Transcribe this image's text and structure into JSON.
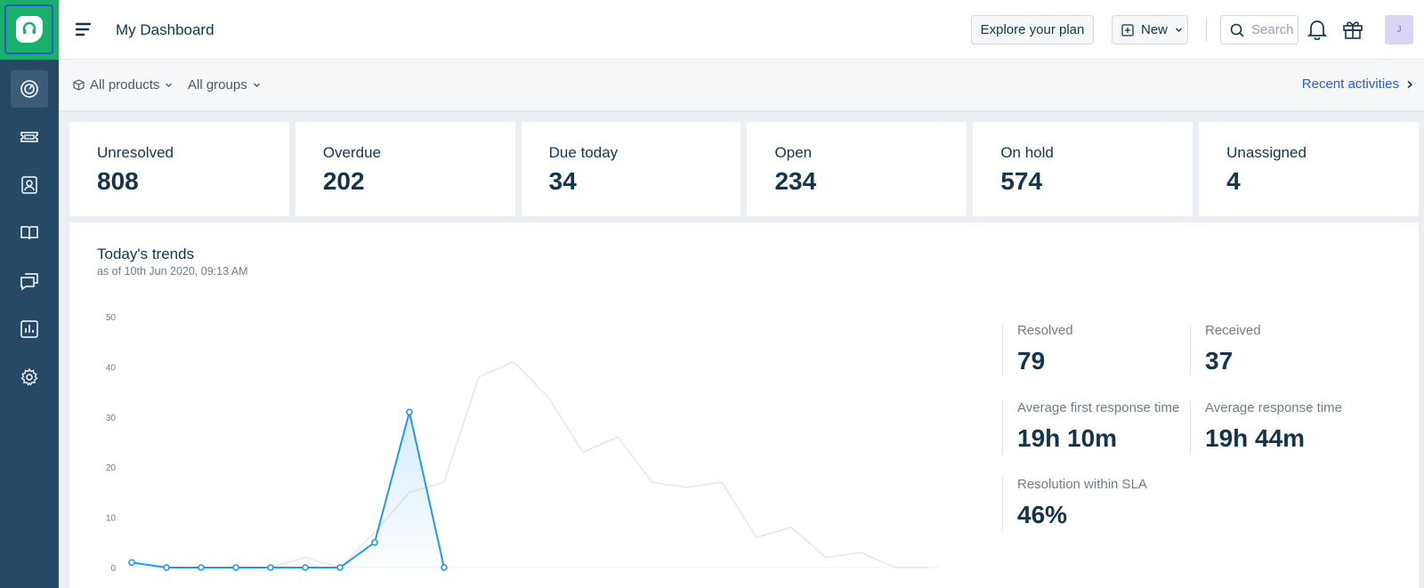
{
  "header": {
    "title": "My Dashboard",
    "explore_label": "Explore your plan",
    "new_label": "New",
    "search_placeholder": "Search",
    "avatar_initial": "J"
  },
  "filters": {
    "products": "All products",
    "groups": "All groups",
    "recent_activities": "Recent activities"
  },
  "sidebar": {
    "items": [
      {
        "icon": "dashboard-icon",
        "active": true
      },
      {
        "icon": "tickets-icon",
        "active": false
      },
      {
        "icon": "contacts-icon",
        "active": false
      },
      {
        "icon": "solutions-icon",
        "active": false
      },
      {
        "icon": "forums-icon",
        "active": false
      },
      {
        "icon": "analytics-icon",
        "active": false
      },
      {
        "icon": "admin-gear-icon",
        "active": false
      }
    ]
  },
  "cards": [
    {
      "label": "Unresolved",
      "value": "808"
    },
    {
      "label": "Overdue",
      "value": "202"
    },
    {
      "label": "Due today",
      "value": "34"
    },
    {
      "label": "Open",
      "value": "234"
    },
    {
      "label": "On hold",
      "value": "574"
    },
    {
      "label": "Unassigned",
      "value": "4"
    }
  ],
  "trends": {
    "title": "Today's trends",
    "subtitle": "as of 10th Jun 2020, 09:13 AM",
    "metrics": {
      "resolved_label": "Resolved",
      "resolved_value": "79",
      "received_label": "Received",
      "received_value": "37",
      "afrt_label": "Average first response time",
      "afrt_value": "19h 10m",
      "art_label": "Average response time",
      "art_value": "19h 44m",
      "sla_label": "Resolution within SLA",
      "sla_value": "46%"
    }
  },
  "chart_data": {
    "type": "line",
    "ylim": [
      0,
      50
    ],
    "yticks": [
      0,
      10,
      20,
      30,
      40,
      50
    ],
    "grid": false,
    "series": [
      {
        "color": "#2196f3",
        "values": [
          1,
          0,
          0,
          0,
          0,
          0,
          0,
          5,
          31,
          0
        ]
      },
      {
        "color": "#e0e3e7",
        "values": [
          1,
          0,
          0,
          0,
          0,
          2,
          0,
          7,
          15,
          17,
          38,
          41,
          34,
          23,
          26,
          17,
          16,
          17,
          6,
          8,
          2,
          3,
          0,
          0
        ]
      }
    ]
  },
  "colors": {
    "sidebar": "#264966",
    "brand_green": "#18b06b",
    "link_blue": "#2c5cc5",
    "series_blue": "#2196f3"
  }
}
